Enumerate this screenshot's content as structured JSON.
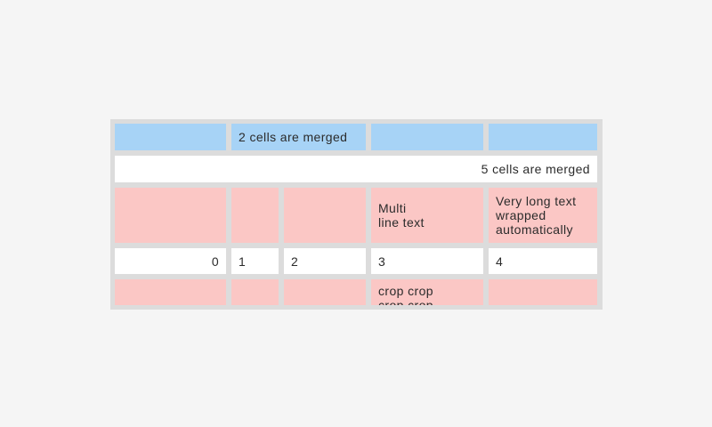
{
  "page": {
    "background_color": "#f5f5f5"
  },
  "table": {
    "description": "table with merged, multi-line, wrapped and cropped cells",
    "grid_color": "#dcdcdc",
    "colors": {
      "header_blue": "#a7d3f6",
      "row_pink": "#fbc7c5",
      "row_white": "#ffffff",
      "text": "#2b2b2b"
    },
    "rows": [
      [
        "",
        "2 cells are merged",
        "",
        ""
      ],
      [
        "5 cells are merged"
      ],
      [
        "",
        "",
        "",
        "Multi\nline text",
        "Very long text wrapped automatically"
      ],
      [
        "0",
        "1",
        "2",
        "3",
        "4"
      ],
      [
        "",
        "",
        "",
        "crop crop\ncrop crop",
        ""
      ]
    ]
  }
}
